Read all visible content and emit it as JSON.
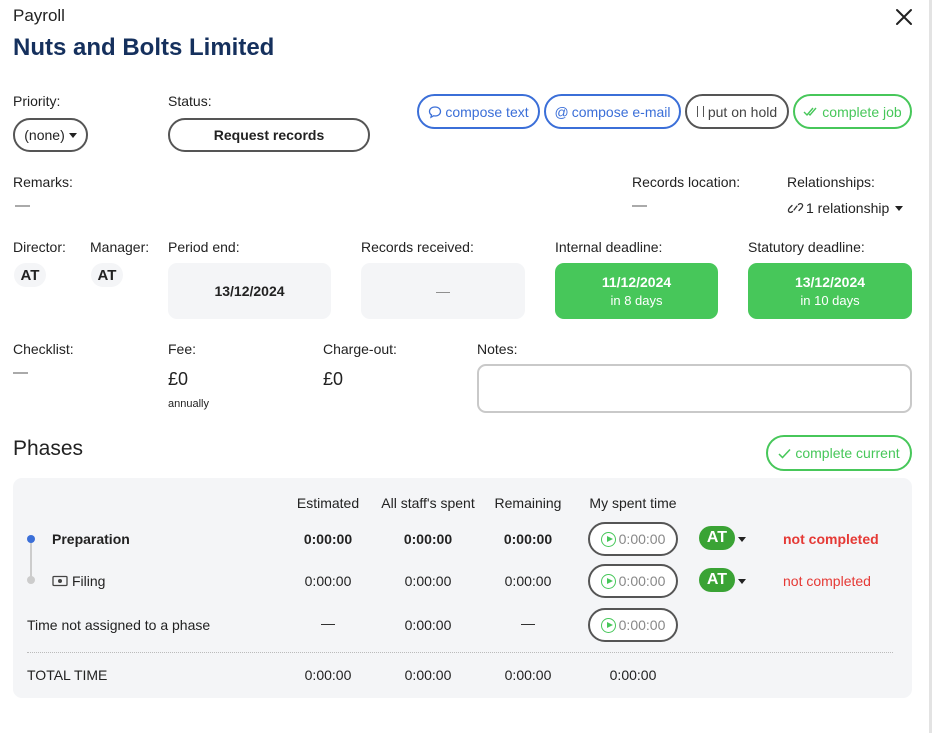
{
  "header": {
    "category": "Payroll",
    "client_name": "Nuts and Bolts Limited"
  },
  "priority": {
    "label": "Priority:",
    "value": "(none)"
  },
  "status": {
    "label": "Status:",
    "value": "Request records"
  },
  "actions": {
    "compose_text": "compose text",
    "compose_email": "compose e-mail",
    "put_on_hold": "put on hold",
    "complete_job": "complete job"
  },
  "remarks": {
    "label": "Remarks:",
    "value": "—"
  },
  "records_location": {
    "label": "Records location:",
    "value": "—"
  },
  "relationships": {
    "label": "Relationships:",
    "value": "1 relationship"
  },
  "director": {
    "label": "Director:",
    "initials": "AT"
  },
  "manager": {
    "label": "Manager:",
    "initials": "AT"
  },
  "period_end": {
    "label": "Period end:",
    "date": "13/12/2024"
  },
  "records_received": {
    "label": "Records received:",
    "value": "—"
  },
  "internal_deadline": {
    "label": "Internal deadline:",
    "date": "11/12/2024",
    "relative": "in 8 days"
  },
  "statutory_deadline": {
    "label": "Statutory deadline:",
    "date": "13/12/2024",
    "relative": "in 10 days"
  },
  "checklist": {
    "label": "Checklist:",
    "value": "—"
  },
  "fee": {
    "label": "Fee:",
    "amount": "£0",
    "frequency": "annually"
  },
  "charge_out": {
    "label": "Charge-out:",
    "amount": "£0"
  },
  "notes": {
    "label": "Notes:",
    "value": ""
  },
  "phases": {
    "title": "Phases",
    "complete_current": "complete current",
    "columns": {
      "estimated": "Estimated",
      "all_staff_spent": "All staff's spent",
      "remaining": "Remaining",
      "my_spent": "My spent time"
    },
    "rows": [
      {
        "name": "Preparation",
        "estimated": "0:00:00",
        "all_staff": "0:00:00",
        "remaining": "0:00:00",
        "my_time": "0:00:00",
        "assignee": "AT",
        "status": "not completed"
      },
      {
        "name": "Filing",
        "estimated": "0:00:00",
        "all_staff": "0:00:00",
        "remaining": "0:00:00",
        "my_time": "0:00:00",
        "assignee": "AT",
        "status": "not completed"
      }
    ],
    "unassigned": {
      "name": "Time not assigned to a phase",
      "estimated": "—",
      "all_staff": "0:00:00",
      "remaining": "—",
      "my_time": "0:00:00"
    },
    "total": {
      "name": "TOTAL TIME",
      "estimated": "0:00:00",
      "all_staff": "0:00:00",
      "remaining": "0:00:00",
      "my_time": "0:00:00"
    }
  },
  "colors": {
    "accent_blue": "#3b6fd8",
    "success_green": "#47c75a",
    "danger_red": "#e53935",
    "title_navy": "#15305d"
  }
}
